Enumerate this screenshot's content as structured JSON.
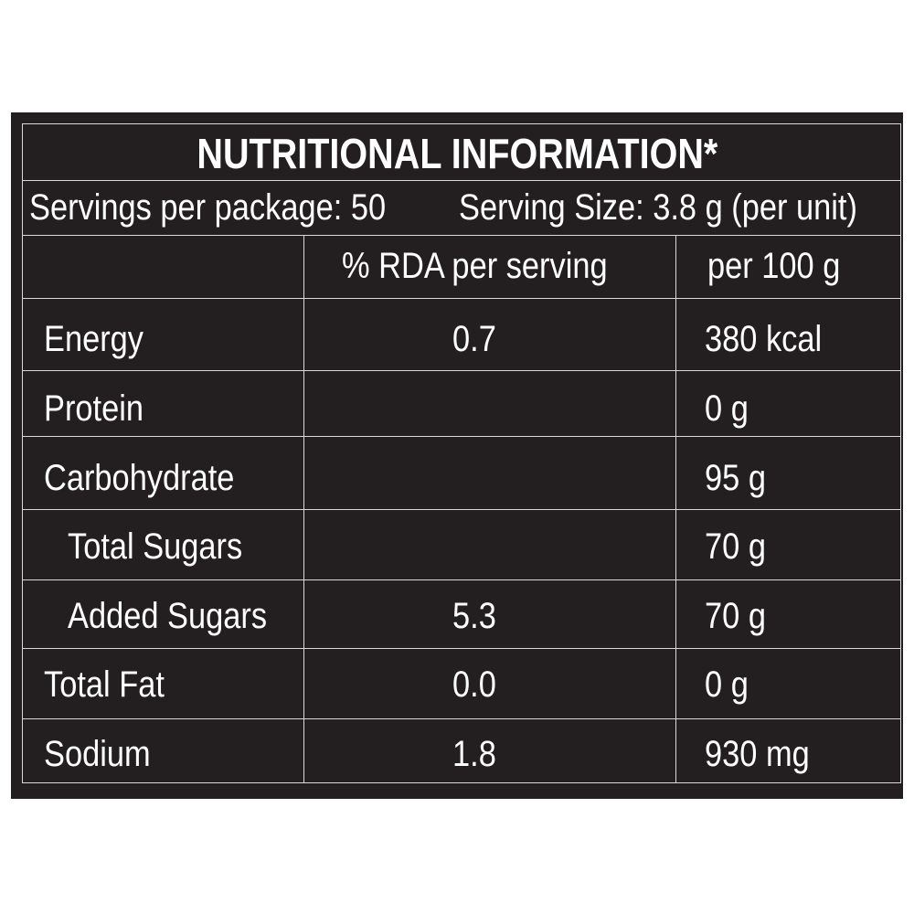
{
  "title": "NUTRITIONAL INFORMATION*",
  "servings_per_package": "Servings per package: 50",
  "serving_size": "Serving Size: 3.8 g (per unit)",
  "columns": {
    "rda": "% RDA per serving",
    "per100": "per 100 g"
  },
  "rows": [
    {
      "nutrient": "Energy",
      "rda": "0.7",
      "per100": "380 kcal"
    },
    {
      "nutrient": "Protein",
      "rda": "",
      "per100": "0 g"
    },
    {
      "nutrient": "Carbohydrate",
      "rda": "",
      "per100": "95 g"
    },
    {
      "nutrient": "Total Sugars",
      "rda": "",
      "per100": "70 g"
    },
    {
      "nutrient": "Added Sugars",
      "rda": "5.3",
      "per100": "70 g"
    },
    {
      "nutrient": "Total Fat",
      "rda": "0.0",
      "per100": "0 g"
    },
    {
      "nutrient": "Sodium",
      "rda": "1.8",
      "per100": "930 mg"
    }
  ],
  "colors": {
    "panel_background": "#231f20",
    "text": "#ffffff",
    "rule": "#d9d9d9"
  }
}
